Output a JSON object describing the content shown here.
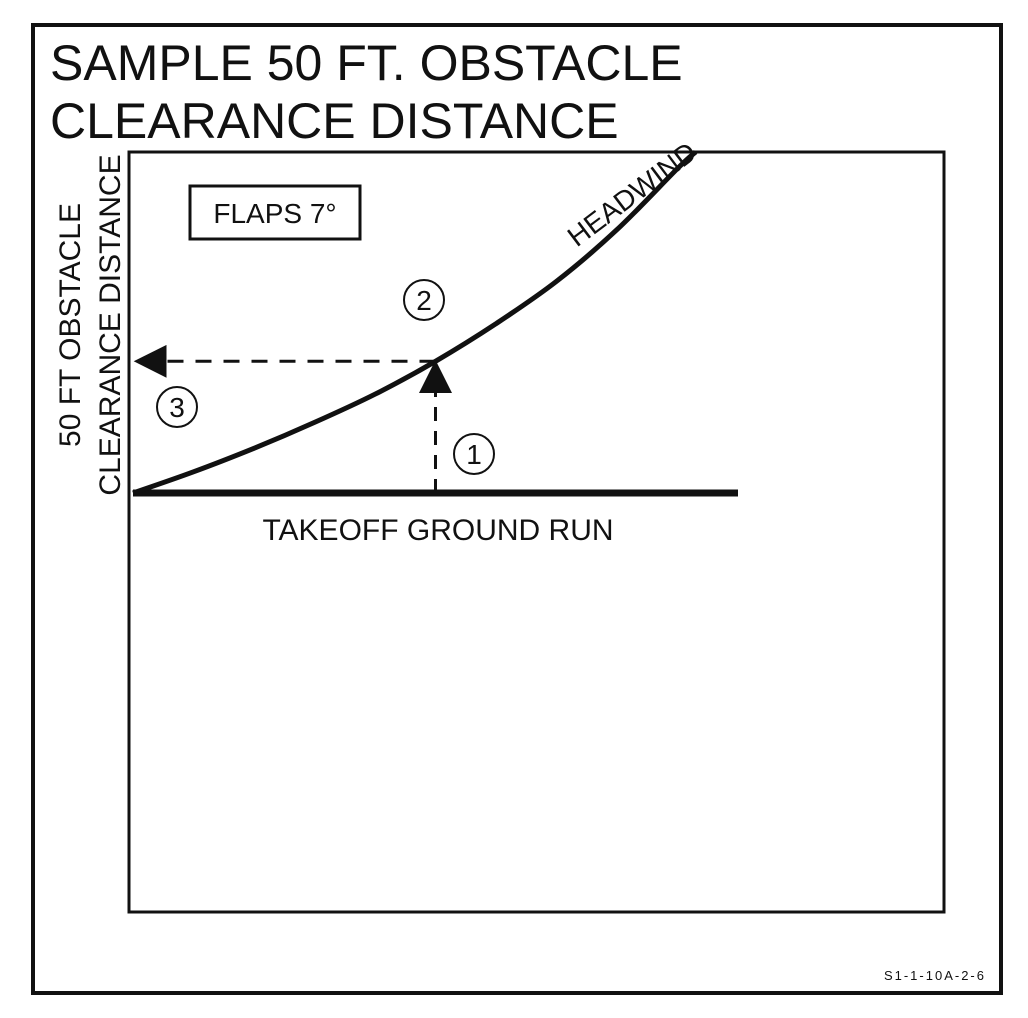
{
  "chart_data": {
    "type": "line",
    "title_lines": [
      "SAMPLE 50 FT. OBSTACLE",
      "CLEARANCE DISTANCE"
    ],
    "xlabel": "TAKEOFF GROUND RUN",
    "ylabel_lines": [
      "50 FT OBSTACLE",
      "CLEARANCE DISTANCE"
    ],
    "condition_label": "FLAPS 7°",
    "series": [
      {
        "name": "HEADWIND",
        "x": [
          0,
          0.1,
          0.2,
          0.3,
          0.4,
          0.5,
          0.6,
          0.7,
          0.8,
          0.9,
          0.93
        ],
        "y": [
          0,
          0.09,
          0.19,
          0.3,
          0.42,
          0.56,
          0.72,
          0.9,
          1.12,
          1.38,
          1.45
        ]
      }
    ],
    "guide": {
      "x": 0.5,
      "y": 0.56
    },
    "steps": [
      "1",
      "2",
      "3"
    ],
    "xlim": [
      0,
      1
    ],
    "ylim": [
      0,
      1.45
    ],
    "grid": false,
    "figure_id": "S1-1-10A-2-6"
  }
}
